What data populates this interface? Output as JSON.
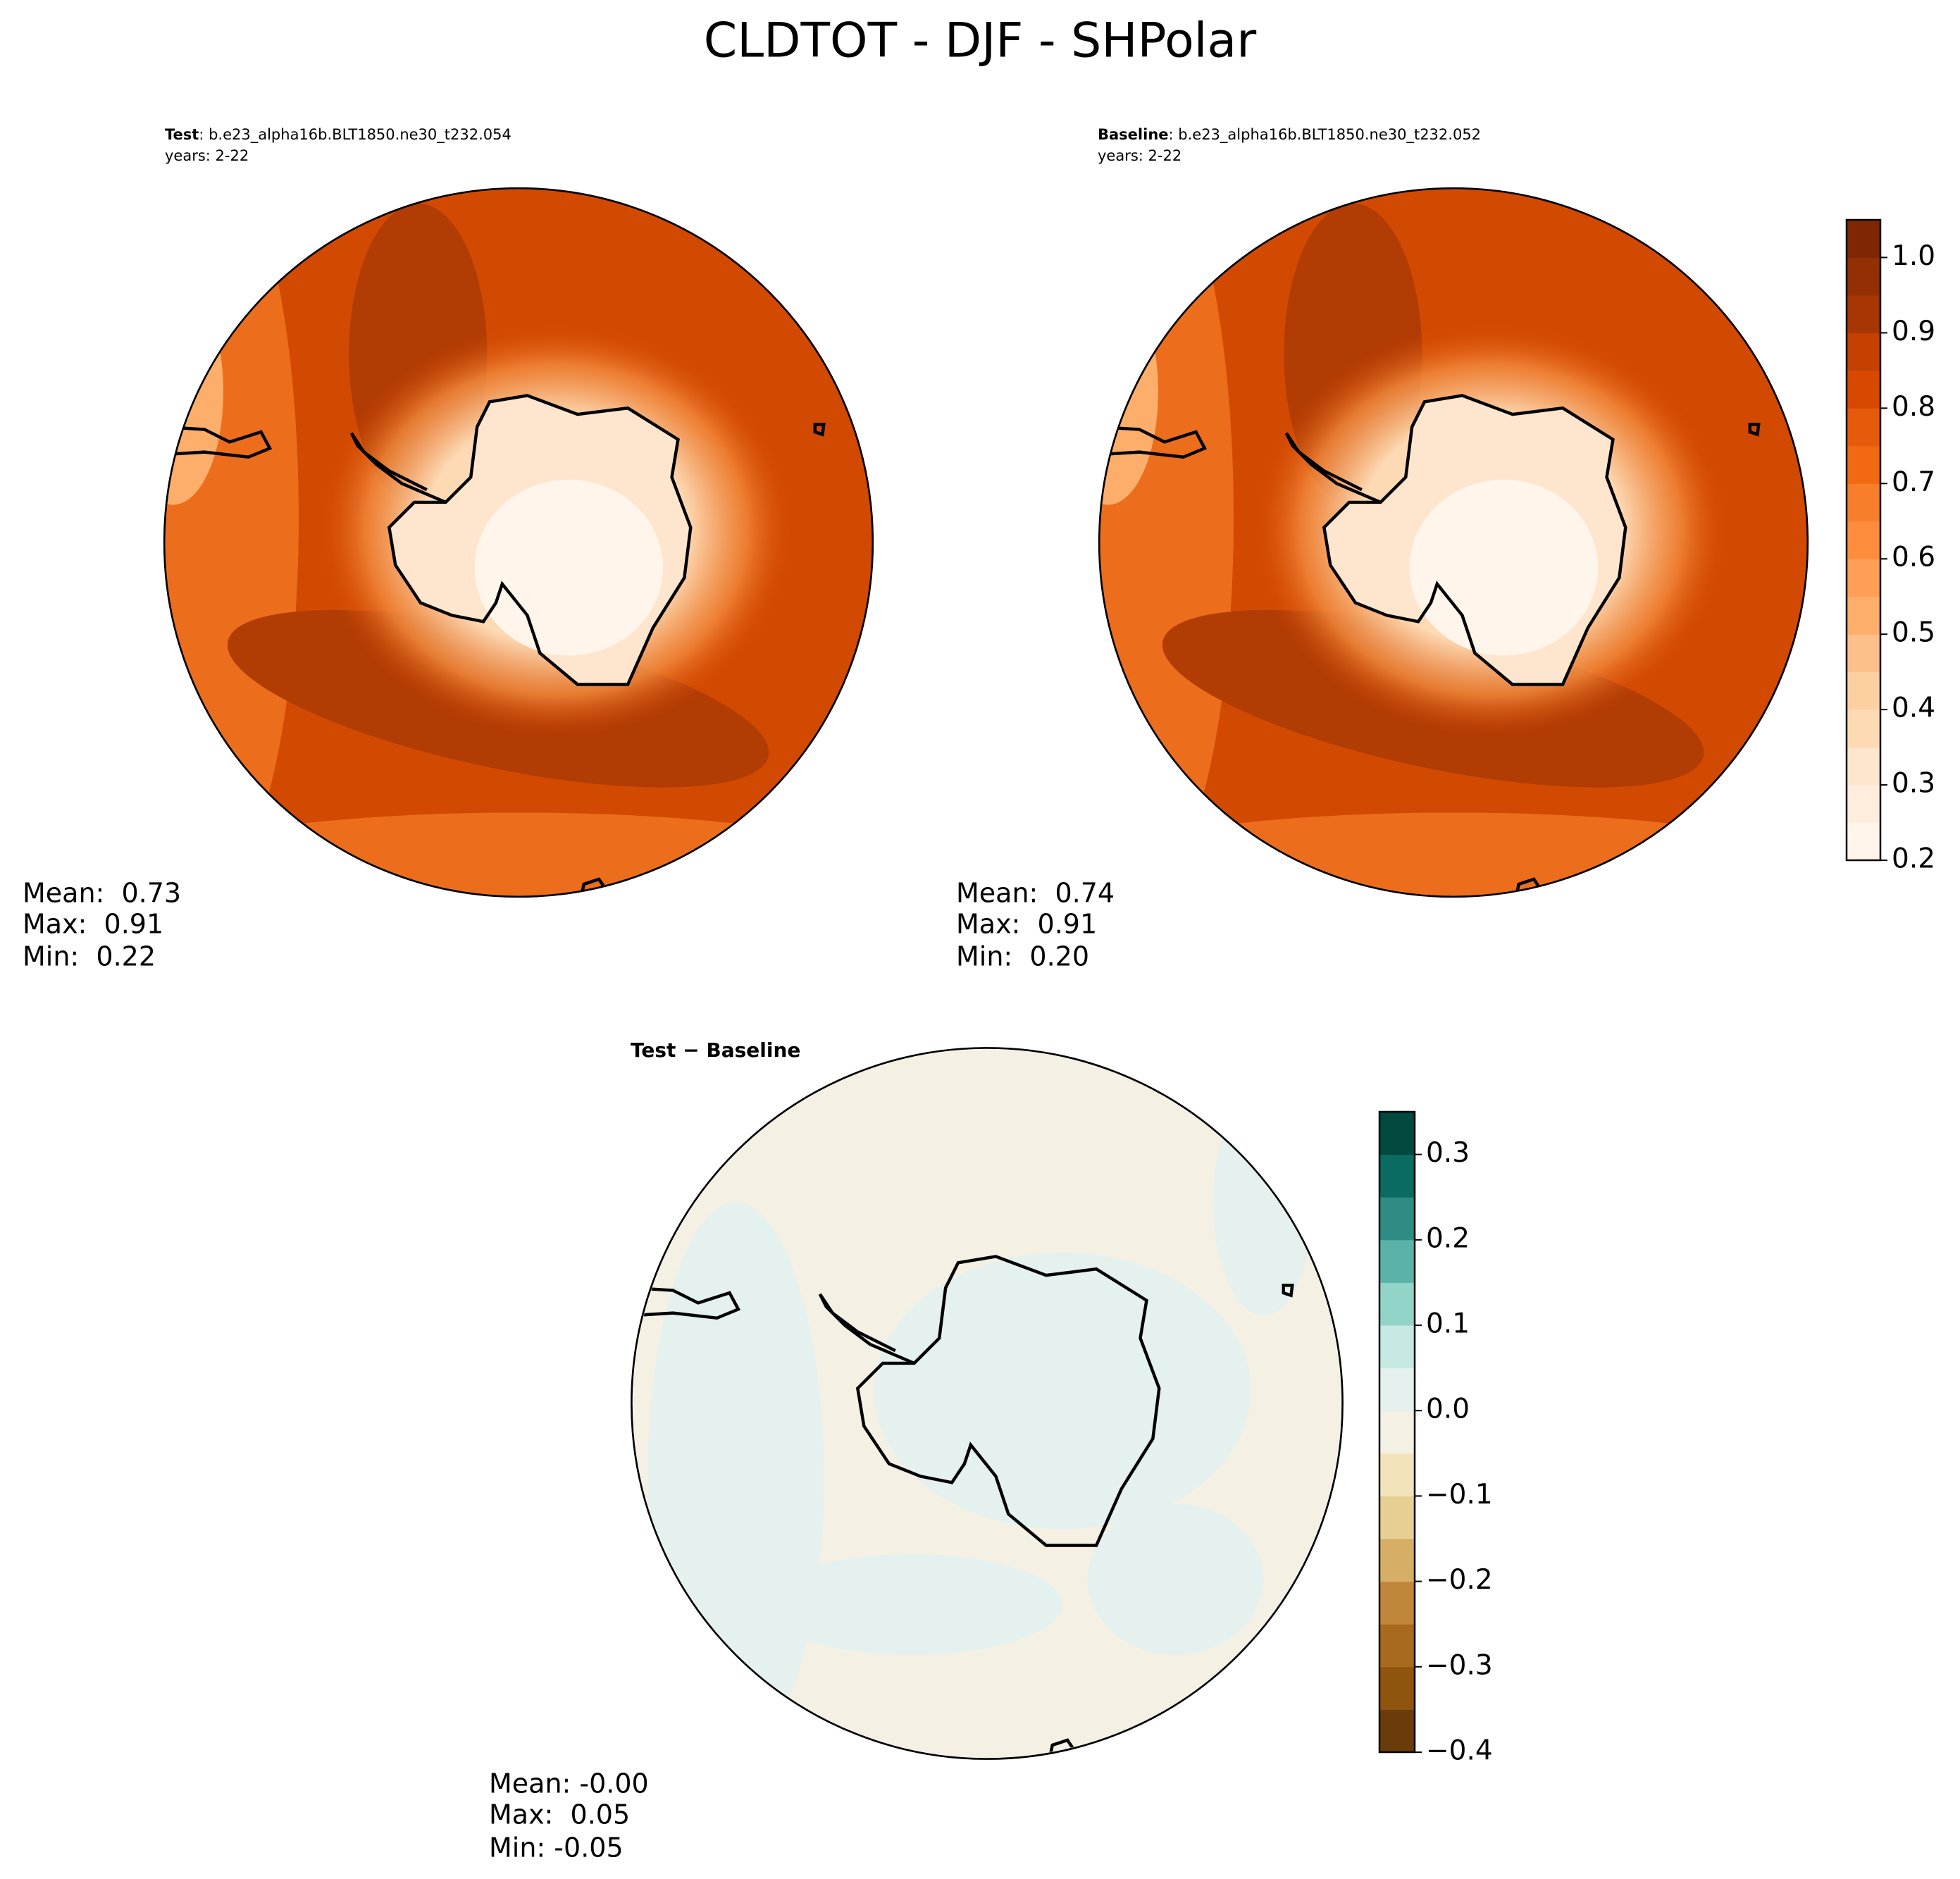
{
  "title": "CLDTOT - DJF - SHPolar",
  "panels": [
    {
      "label": "Test",
      "case": ": b.e23_alpha16b.BLT1850.ne30_t232.054",
      "years": "years: 2-22",
      "stats": [
        "Mean:  0.73",
        "Max:  0.91",
        "Min:  0.22"
      ]
    },
    {
      "label": "Baseline",
      "case": ": b.e23_alpha16b.BLT1850.ne30_t232.052",
      "years": "years: 2-22",
      "stats": [
        "Mean:  0.74",
        "Max:  0.91",
        "Min:  0.20"
      ]
    },
    {
      "label": "Test − Baseline",
      "stats": [
        "Mean: -0.00",
        "Max:  0.05",
        "Min: -0.05"
      ]
    }
  ],
  "colorbars": [
    {
      "lim": [
        0.2,
        1.05
      ],
      "ticks": [
        0.2,
        0.3,
        0.4,
        0.5,
        0.6,
        0.7,
        0.8,
        0.9,
        {
          "value": 1,
          "label": "1.0"
        }
      ],
      "colors": [
        "#fff5eb",
        "#feeddc",
        "#fee6ce",
        "#fdd9b4",
        "#fdd0a2",
        "#fdc08a",
        "#fdae6b",
        "#fd9f56",
        "#fd8d3c",
        "#f87e2b",
        "#f16913",
        "#e65a0b",
        "#d94801",
        "#c44103",
        "#a63603",
        "#933003",
        "#7f2704"
      ]
    },
    {
      "lim": [
        -0.4,
        0.35
      ],
      "ticks": [
        {
          "value": -0.4,
          "label": "−0.4"
        },
        {
          "value": -0.3,
          "label": "−0.3"
        },
        {
          "value": -0.2,
          "label": "−0.2"
        },
        {
          "value": -0.1,
          "label": "−0.1"
        },
        {
          "value": 0,
          "label": "0.0"
        },
        0.1,
        0.2,
        0.3
      ],
      "colors": [
        "#6b3c0b",
        "#8f540e",
        "#a86a1e",
        "#c0873a",
        "#d6ae66",
        "#e7cf94",
        "#f3e3bb",
        "#f4f0e4",
        "#e4f1ef",
        "#c6e9e4",
        "#93d4c8",
        "#5bb3a8",
        "#2e8c85",
        "#0a6b62",
        "#01493f"
      ]
    }
  ]
}
